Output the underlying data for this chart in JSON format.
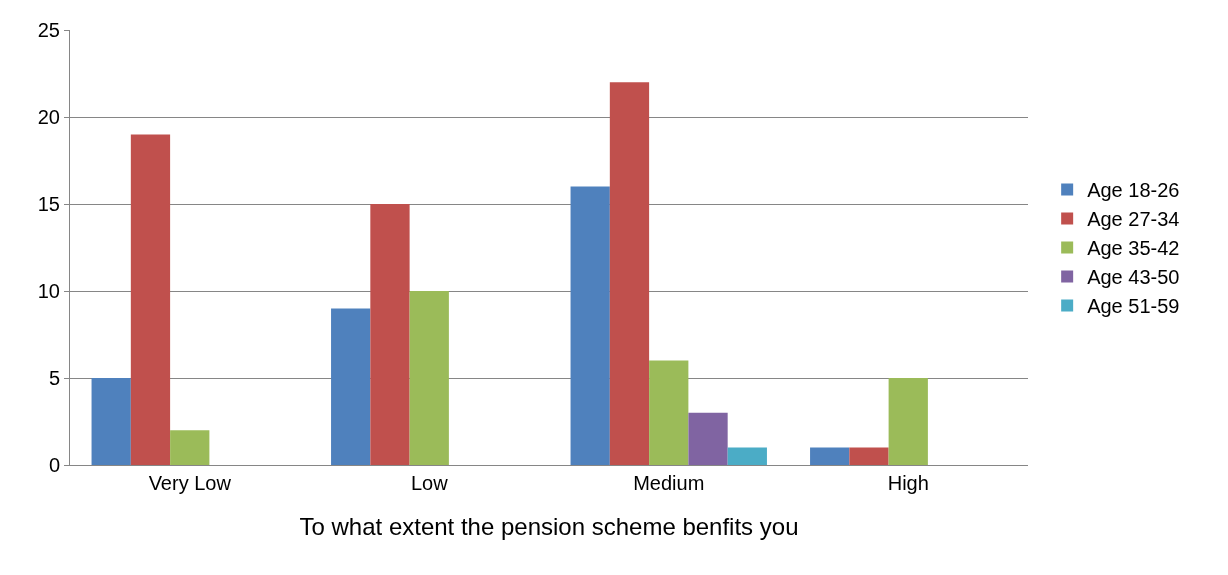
{
  "chart_data": {
    "type": "bar",
    "xlabel": "To what extent the pension scheme benfits you",
    "categories": [
      "Very Low",
      "Low",
      "Medium",
      "High"
    ],
    "series": [
      {
        "name": "Age 18-26",
        "color": "#4f81bd",
        "values": [
          5,
          9,
          16,
          1
        ]
      },
      {
        "name": "Age 27-34",
        "color": "#c0504d",
        "values": [
          19,
          15,
          22,
          1
        ]
      },
      {
        "name": "Age 35-42",
        "color": "#9bbb59",
        "values": [
          2,
          10,
          6,
          5
        ]
      },
      {
        "name": "Age 43-50",
        "color": "#8064a2",
        "values": [
          0,
          0,
          3,
          0
        ]
      },
      {
        "name": "Age 51-59",
        "color": "#4bacc6",
        "values": [
          0,
          0,
          1,
          0
        ]
      }
    ],
    "ylim": [
      0,
      25
    ],
    "yticks": [
      0,
      5,
      10,
      15,
      20,
      25
    ],
    "grid": "y",
    "legend": "right"
  }
}
